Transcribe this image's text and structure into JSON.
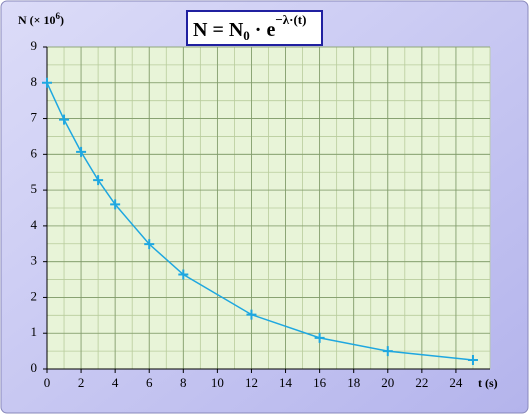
{
  "chart_data": {
    "type": "line",
    "title": {
      "base": "N = N",
      "sub": "0",
      "mid": " · e",
      "sup": "−λ·(t)"
    },
    "y_label": {
      "base": "N (× 10",
      "sup": "6",
      "end": ")"
    },
    "x_label": "t (s)",
    "x": [
      0,
      1,
      2,
      3,
      4,
      6,
      8,
      12,
      16,
      20,
      25
    ],
    "series": [
      {
        "name": "N",
        "color": "#1ea7e0",
        "values": [
          8,
          6.97,
          6.07,
          5.28,
          4.6,
          3.49,
          2.64,
          1.52,
          0.87,
          0.5,
          0.25
        ]
      }
    ],
    "xlim": [
      0,
      26
    ],
    "ylim": [
      0,
      9
    ],
    "xticks": [
      0,
      2,
      4,
      6,
      8,
      10,
      12,
      14,
      16,
      18,
      20,
      22,
      24
    ],
    "yticks": [
      0,
      1,
      2,
      3,
      4,
      5,
      6,
      7,
      8,
      9
    ],
    "grid": true,
    "minor_grid": true
  }
}
